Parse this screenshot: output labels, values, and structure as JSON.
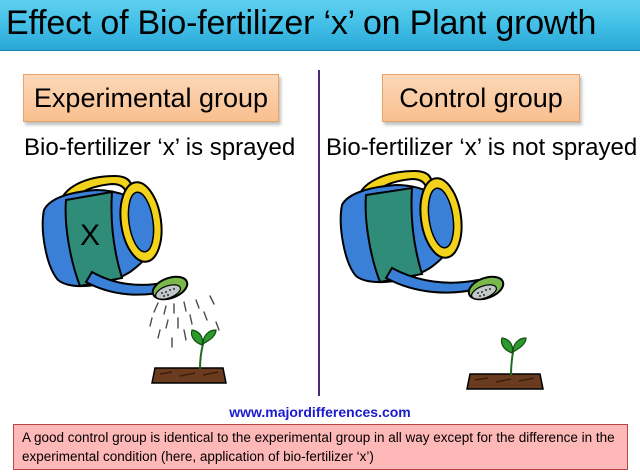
{
  "title": "Effect of Bio-fertilizer ‘x’ on  Plant growth",
  "experimental": {
    "label": "Experimental group",
    "caption": "Bio-fertilizer ‘x’ is sprayed",
    "can_marking": "X"
  },
  "control": {
    "label": "Control group",
    "caption": "Bio-fertilizer ‘x’ is not sprayed"
  },
  "website": "www.majordifferences.com",
  "note": "A good control group is identical to the experimental group in all way except for the difference in the experimental condition (here, application of bio-fertilizer ‘x’)",
  "colors": {
    "title_bar": "#3fbde6",
    "label_box": "#f9bf8f",
    "can_blue": "#3a7fd8",
    "can_band": "#2e8c78",
    "handle_yellow": "#f2d21a",
    "spout_green": "#79b84a",
    "plant_green": "#2c9a2c",
    "soil": "#6a3b1f",
    "divider": "#4b2a7a",
    "note_box": "#ffb8b8",
    "website_text": "#1a1ad0"
  },
  "icons": [
    "watering-can-icon",
    "seedling-icon",
    "water-drops-icon"
  ]
}
